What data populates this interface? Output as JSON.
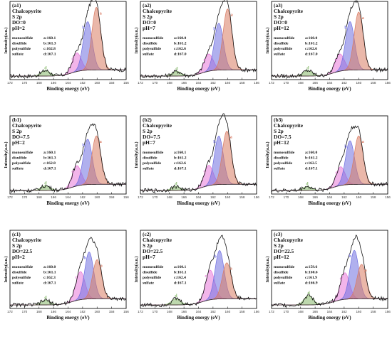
{
  "chart_data": [
    {
      "id": "a1",
      "type": "line",
      "panel_label": "(a1)",
      "title_lines": [
        "Chalcopyrite",
        "S 2p",
        "DO=0",
        "pH=2"
      ],
      "peaks": [
        {
          "key": "a",
          "name": "monosulfide",
          "bind_label": "a:160.1",
          "center": 160.1,
          "height": 0.8
        },
        {
          "key": "b",
          "name": "disulfide",
          "bind_label": "b:161.3",
          "center": 161.3,
          "height": 0.62
        },
        {
          "key": "c",
          "name": "polysulfide",
          "bind_label": "c:162.8",
          "center": 162.8,
          "height": 0.24
        },
        {
          "key": "d",
          "name": "sulfate",
          "bind_label": "d:167.1",
          "center": 167.1,
          "height": 0.07
        }
      ],
      "xlabel": "Binding energy (eV)",
      "ylabel": "Intensity(a.u.)",
      "xlim": [
        172,
        156
      ],
      "xticks": [
        "172",
        "170",
        "168",
        "166",
        "164",
        "162",
        "160",
        "158",
        "156"
      ]
    },
    {
      "id": "a2",
      "type": "line",
      "panel_label": "(a2)",
      "title_lines": [
        "Chalcopyrite",
        "S 2p",
        "DO=0",
        "pH=7"
      ],
      "peaks": [
        {
          "key": "a",
          "name": "monosulfide",
          "bind_label": "a:160.0",
          "center": 160.0,
          "height": 0.78
        },
        {
          "key": "b",
          "name": "disulfide",
          "bind_label": "b:161.2",
          "center": 161.2,
          "height": 0.6
        },
        {
          "key": "c",
          "name": "polysulfide",
          "bind_label": "c:162.6",
          "center": 162.6,
          "height": 0.22
        },
        {
          "key": "d",
          "name": "sulfate",
          "bind_label": "d:167.0",
          "center": 167.0,
          "height": 0.06
        }
      ],
      "xlabel": "Binding energy (eV)",
      "ylabel": "Intensity(a.u.)",
      "xlim": [
        172,
        156
      ],
      "xticks": [
        "172",
        "170",
        "168",
        "166",
        "164",
        "162",
        "160",
        "158",
        "156"
      ]
    },
    {
      "id": "a3",
      "type": "line",
      "panel_label": "(a3)",
      "title_lines": [
        "Chalcopyrite",
        "S 2p",
        "DO=0",
        "pH=12"
      ],
      "peaks": [
        {
          "key": "a",
          "name": "monosulfide",
          "bind_label": "a:160.0",
          "center": 160.0,
          "height": 0.74
        },
        {
          "key": "b",
          "name": "disulfide",
          "bind_label": "b:161.2",
          "center": 161.2,
          "height": 0.62
        },
        {
          "key": "c",
          "name": "polysulfide",
          "bind_label": "c:162.6",
          "center": 162.6,
          "height": 0.22
        },
        {
          "key": "d",
          "name": "sulfate",
          "bind_label": "d:167.0",
          "center": 167.0,
          "height": 0.07
        }
      ],
      "xlabel": "Binding energy (eV)",
      "ylabel": "Intensity(a.u.)",
      "xlim": [
        172,
        156
      ],
      "xticks": [
        "172",
        "170",
        "168",
        "166",
        "164",
        "162",
        "160",
        "158",
        "156"
      ]
    },
    {
      "id": "b1",
      "type": "line",
      "panel_label": "(b1)",
      "title_lines": [
        "Chalcopyrite",
        "S 2p",
        "DO=7.5",
        "pH=2"
      ],
      "peaks": [
        {
          "key": "a",
          "name": "monosulfide",
          "bind_label": "a:160.1",
          "center": 160.1,
          "height": 0.62
        },
        {
          "key": "b",
          "name": "disulfide",
          "bind_label": "b:161.3",
          "center": 161.3,
          "height": 0.58
        },
        {
          "key": "c",
          "name": "polysulfide",
          "bind_label": "c:162.8",
          "center": 162.8,
          "height": 0.26
        },
        {
          "key": "d",
          "name": "sulfate",
          "bind_label": "d:167.1",
          "center": 167.1,
          "height": 0.06
        }
      ],
      "xlabel": "Binding energy (eV)",
      "ylabel": "Intensity(a.u.)",
      "xlim": [
        172,
        156
      ],
      "xticks": [
        "172",
        "170",
        "168",
        "166",
        "164",
        "162",
        "160",
        "158",
        "156"
      ]
    },
    {
      "id": "b2",
      "type": "line",
      "panel_label": "(b2)",
      "title_lines": [
        "Chalcopyrite",
        "S 2p",
        "DO=7.5",
        "pH=7"
      ],
      "peaks": [
        {
          "key": "a",
          "name": "monosulfide",
          "bind_label": "a:160.1",
          "center": 160.1,
          "height": 0.68
        },
        {
          "key": "b",
          "name": "disulfide",
          "bind_label": "b:161.2",
          "center": 161.2,
          "height": 0.62
        },
        {
          "key": "c",
          "name": "polysulfide",
          "bind_label": "c:162.6",
          "center": 162.6,
          "height": 0.26
        },
        {
          "key": "d",
          "name": "sulfate",
          "bind_label": "d:167.1",
          "center": 167.1,
          "height": 0.05
        }
      ],
      "xlabel": "Binding energy (eV)",
      "ylabel": "Intensity(a.u.)",
      "xlim": [
        172,
        156
      ],
      "xticks": [
        "172",
        "170",
        "168",
        "166",
        "164",
        "162",
        "160",
        "158",
        "156"
      ]
    },
    {
      "id": "b3",
      "type": "line",
      "panel_label": "(b3)",
      "title_lines": [
        "Chalcopyrite",
        "S 2p",
        "DO=7.5",
        "pH=12"
      ],
      "peaks": [
        {
          "key": "a",
          "name": "monosulfide",
          "bind_label": "a:160.0",
          "center": 160.0,
          "height": 0.62
        },
        {
          "key": "b",
          "name": "disulfide",
          "bind_label": "b:161.2",
          "center": 161.2,
          "height": 0.56
        },
        {
          "key": "c",
          "name": "polysulfide",
          "bind_label": "c:162.5",
          "center": 162.5,
          "height": 0.24
        },
        {
          "key": "d",
          "name": "sulfate",
          "bind_label": "d:167.1",
          "center": 167.1,
          "height": 0.05
        }
      ],
      "xlabel": "Binding energy (eV)",
      "ylabel": "Intensity(a.u.)",
      "xlim": [
        172,
        156
      ],
      "xticks": [
        "172",
        "170",
        "168",
        "166",
        "164",
        "162",
        "160",
        "158",
        "156"
      ]
    },
    {
      "id": "c1",
      "type": "line",
      "panel_label": "(c1)",
      "title_lines": [
        "Chalcopyrite",
        "S 2p",
        "DO=22.5",
        "pH=2"
      ],
      "peaks": [
        {
          "key": "a",
          "name": "monosulfide",
          "bind_label": "a:160.0",
          "center": 160.0,
          "height": 0.5
        },
        {
          "key": "b",
          "name": "disulfide",
          "bind_label": "b:161.1",
          "center": 161.1,
          "height": 0.6
        },
        {
          "key": "c",
          "name": "polysulfide",
          "bind_label": "c:162.3",
          "center": 162.3,
          "height": 0.36
        },
        {
          "key": "d",
          "name": "sulfate",
          "bind_label": "d:167.1",
          "center": 167.1,
          "height": 0.06
        }
      ],
      "xlabel": "Binding energy (eV)",
      "ylabel": "Intensity(a.u.)",
      "xlim": [
        172,
        156
      ],
      "xticks": [
        "172",
        "170",
        "168",
        "166",
        "164",
        "162",
        "160",
        "158",
        "156"
      ]
    },
    {
      "id": "c2",
      "type": "line",
      "panel_label": "(c2)",
      "title_lines": [
        "Chalcopyrite",
        "S 2p",
        "DO=22.5",
        "pH=7"
      ],
      "peaks": [
        {
          "key": "a",
          "name": "monosulfide",
          "bind_label": "a:160.1",
          "center": 160.1,
          "height": 0.46
        },
        {
          "key": "b",
          "name": "disulfide",
          "bind_label": "b:161.1",
          "center": 161.1,
          "height": 0.62
        },
        {
          "key": "c",
          "name": "polysulfide",
          "bind_label": "c:162.4",
          "center": 162.4,
          "height": 0.38
        },
        {
          "key": "d",
          "name": "sulfate",
          "bind_label": "d:167.1",
          "center": 167.1,
          "height": 0.08
        }
      ],
      "xlabel": "Binding energy (eV)",
      "ylabel": "Intensity(a.u.)",
      "xlim": [
        172,
        156
      ],
      "xticks": [
        "172",
        "170",
        "168",
        "166",
        "164",
        "162",
        "160",
        "158",
        "156"
      ]
    },
    {
      "id": "c3",
      "type": "line",
      "panel_label": "(c3)",
      "title_lines": [
        "Chalcopyrite",
        "S 2p",
        "DO=22.5",
        "pH=12"
      ],
      "peaks": [
        {
          "key": "a",
          "name": "monosulfide",
          "bind_label": "a:159.6",
          "center": 159.6,
          "height": 0.44
        },
        {
          "key": "b",
          "name": "disulfide",
          "bind_label": "b:160.6",
          "center": 160.6,
          "height": 0.62
        },
        {
          "key": "c",
          "name": "polysulfide",
          "bind_label": "c:161.9",
          "center": 161.9,
          "height": 0.34
        },
        {
          "key": "d",
          "name": "sulfate",
          "bind_label": "d:166.9",
          "center": 166.9,
          "height": 0.12
        }
      ],
      "xlabel": "Binding energy (eV)",
      "ylabel": "Intensity(a.u.)",
      "xlim": [
        172,
        156
      ],
      "xticks": [
        "172",
        "170",
        "168",
        "166",
        "164",
        "162",
        "160",
        "158",
        "156"
      ]
    }
  ],
  "colors": {
    "a": "#d97b63",
    "b": "#6f6fe0",
    "c": "#e878d8",
    "d": "#86b86a",
    "frame": "#111111",
    "raw": "#111111"
  }
}
